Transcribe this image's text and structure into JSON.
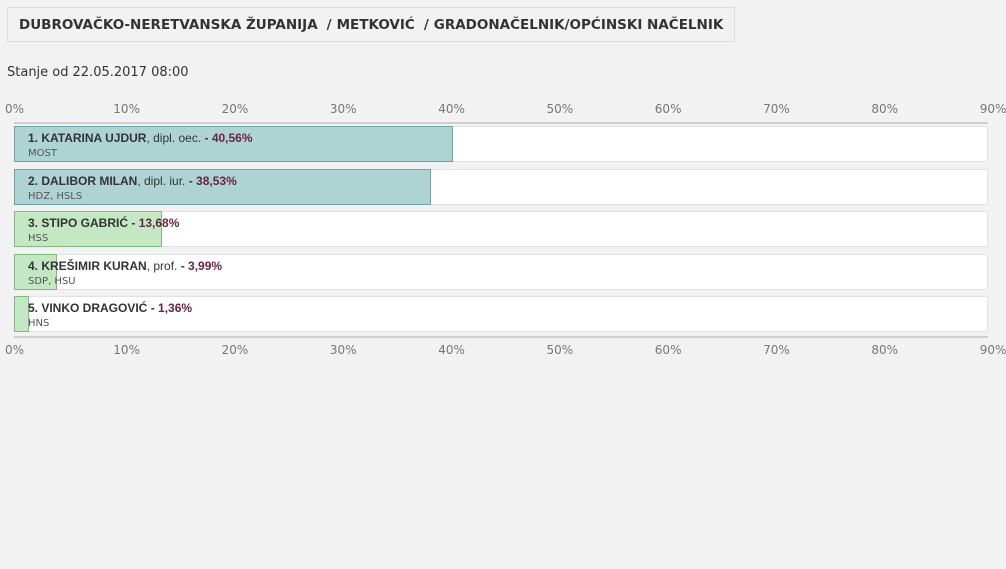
{
  "breadcrumb": {
    "county": "DUBROVAČKO-NERETVANSKA ŽUPANIJA",
    "city": "METKOVIĆ",
    "office": "GRADONAČELNIK/OPĆINSKI NAČELNIK",
    "separator": "/"
  },
  "status": {
    "label": "Stanje od",
    "datetime": "22.05.2017 08:00"
  },
  "colors": {
    "teal_bar": "#aed3d3",
    "green_bar": "#c3e8c3",
    "percent_text": "#6b2440"
  },
  "chart_data": {
    "type": "bar",
    "orientation": "horizontal",
    "xlim": [
      0,
      90
    ],
    "ticks": [
      "0%",
      "10%",
      "20%",
      "30%",
      "40%",
      "50%",
      "60%",
      "70%",
      "80%",
      "90%"
    ],
    "grid": false,
    "candidates": [
      {
        "label": "1. KATARINA UJDUR",
        "suffix": ", dipl. oec.",
        "pct_text": "40,56%",
        "value": 40.56,
        "party": "MOST",
        "color": "teal"
      },
      {
        "label": "2. DALIBOR MILAN",
        "suffix": ", dipl. iur.",
        "pct_text": "38,53%",
        "value": 38.53,
        "party": "HDZ, HSLS",
        "color": "teal"
      },
      {
        "label": "3. STIPO GABRIĆ",
        "suffix": "",
        "pct_text": "13,68%",
        "value": 13.68,
        "party": "HSS",
        "color": "green"
      },
      {
        "label": "4. KREŠIMIR KURAN",
        "suffix": ", prof.",
        "pct_text": "3,99%",
        "value": 3.99,
        "party": "SDP, HSU",
        "color": "green"
      },
      {
        "label": "5. VINKO DRAGOVIĆ",
        "suffix": "",
        "pct_text": "1,36%",
        "value": 1.36,
        "party": "HNS",
        "color": "green"
      }
    ]
  }
}
